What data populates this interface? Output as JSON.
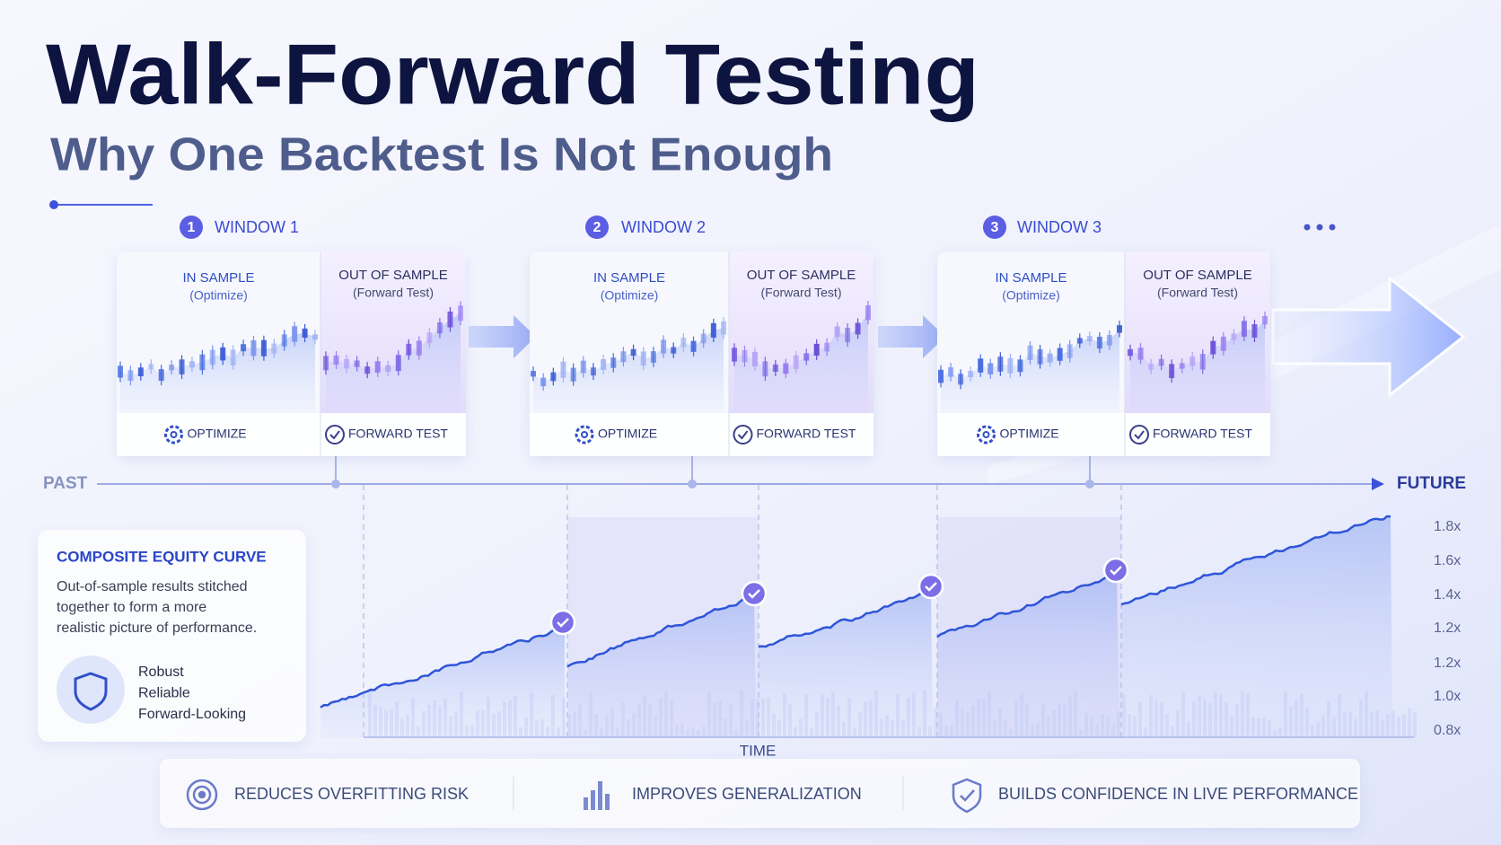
{
  "header": {
    "title": "Walk-Forward Testing",
    "subtitle": "Why One Backtest Is Not Enough"
  },
  "windows": [
    {
      "number": "1",
      "label": "WINDOW 1",
      "in_sample": {
        "title": "IN SAMPLE",
        "note": "(Optimize)",
        "action": "OPTIMIZE"
      },
      "out_of_sample": {
        "title": "OUT OF SAMPLE",
        "note": "(Forward Test)",
        "action": "FORWARD TEST"
      }
    },
    {
      "number": "2",
      "label": "WINDOW 2",
      "in_sample": {
        "title": "IN SAMPLE",
        "note": "(Optimize)",
        "action": "OPTIMIZE"
      },
      "out_of_sample": {
        "title": "OUT OF SAMPLE",
        "note": "(Forward Test)",
        "action": "FORWARD TEST"
      }
    },
    {
      "number": "3",
      "label": "WINDOW 3",
      "in_sample": {
        "title": "IN SAMPLE",
        "note": "(Optimize)",
        "action": "OPTIMIZE"
      },
      "out_of_sample": {
        "title": "OUT OF SAMPLE",
        "note": "(Forward Test)",
        "action": "FORWARD TEST"
      }
    }
  ],
  "timeline": {
    "start": "PAST",
    "end": "FUTURE",
    "axis_label": "TIME",
    "y_labels": [
      "1.8x",
      "1.6x",
      "1.4x",
      "1.2x",
      "1.2x",
      "1.0x",
      "0.8x"
    ]
  },
  "composite": {
    "title": "COMPOSITE EQUITY CURVE",
    "description": [
      "Out-of-sample results stitched",
      "together to form a more",
      "realistic picture of performance."
    ],
    "traits": [
      "Robust",
      "Reliable",
      "Forward-Looking"
    ]
  },
  "benefits": [
    "REDUCES OVERFITTING RISK",
    "IMPROVES GENERALIZATION",
    "BUILDS CONFIDENCE IN LIVE PERFORMANCE"
  ]
}
